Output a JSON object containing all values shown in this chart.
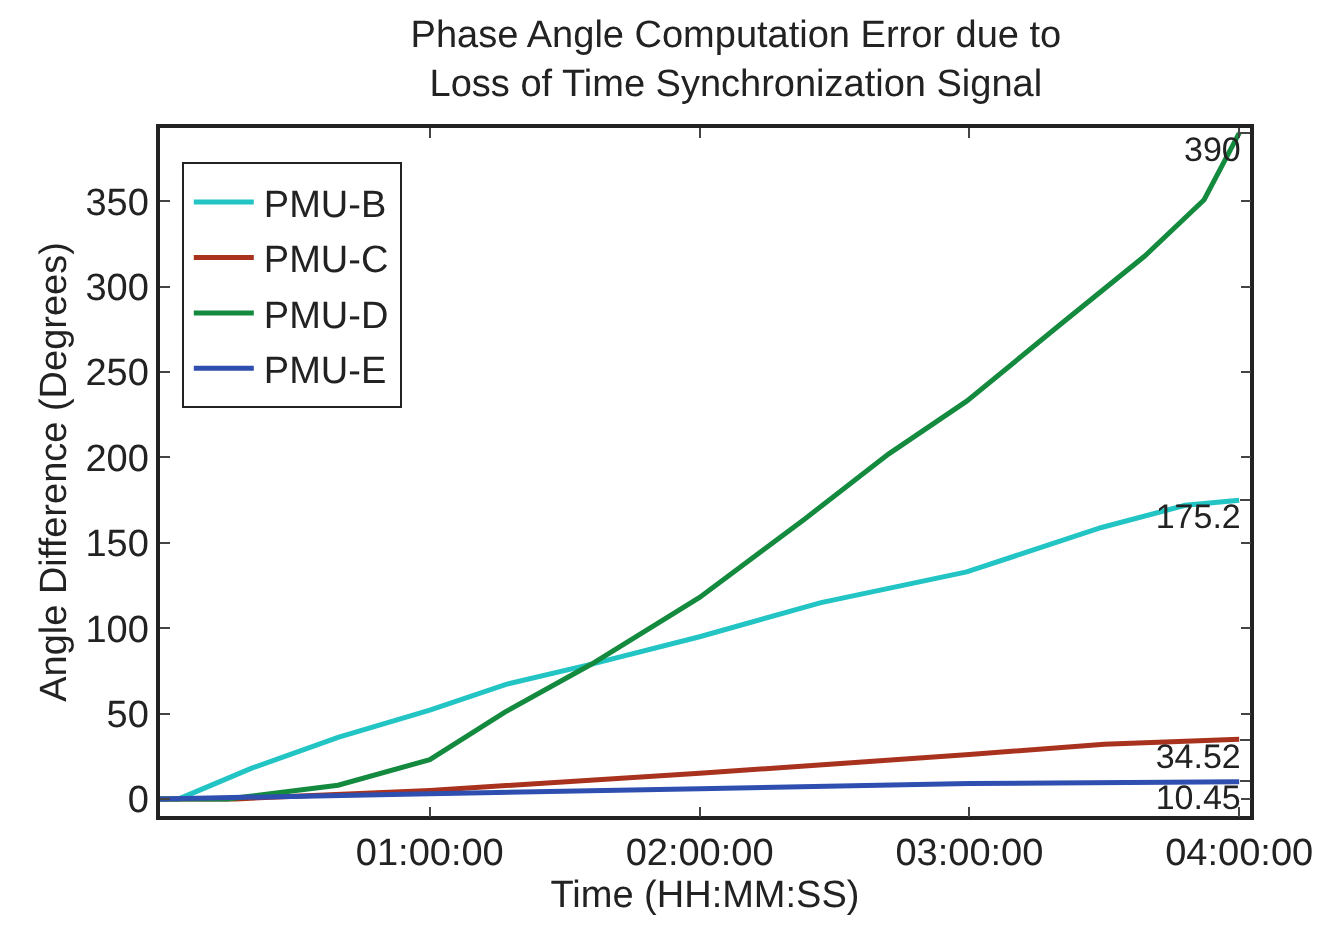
{
  "chart_data": {
    "type": "line",
    "title": "Phase Angle Computation Error due to\nLoss of Time Synchronization Signal",
    "xlabel": "Time (HH:MM:SS)",
    "ylabel": "Angle Difference (Degrees)",
    "xlim": [
      0,
      4.04
    ],
    "xticks": [
      {
        "value": 1,
        "label": "01:00:00"
      },
      {
        "value": 2,
        "label": "02:00:00"
      },
      {
        "value": 3,
        "label": "03:00:00"
      },
      {
        "value": 4,
        "label": "04:00:00"
      }
    ],
    "ylim": [
      -10,
      393
    ],
    "yticks": [
      0,
      50,
      100,
      150,
      200,
      250,
      300,
      350
    ],
    "legend": "top left",
    "marker": "none",
    "line_style": "solid",
    "series": [
      {
        "name": "PMU-B",
        "color": "#22c4c4",
        "x": [
          0,
          0.07,
          0.34,
          0.66,
          1.0,
          1.28,
          1.6,
          2.0,
          2.45,
          2.99,
          3.49,
          3.8,
          4.0
        ],
        "values": [
          0,
          0,
          18,
          36,
          52,
          67,
          79,
          95,
          115,
          133,
          159,
          172,
          175
        ]
      },
      {
        "name": "PMU-C",
        "color": "#a8321e",
        "x": [
          0,
          0.28,
          1.0,
          2.0,
          3.0,
          3.5,
          4.0
        ],
        "values": [
          0,
          0,
          5,
          15,
          26,
          32,
          35
        ]
      },
      {
        "name": "PMU-D",
        "color": "#138a3e",
        "x": [
          0,
          0.25,
          0.66,
          1.0,
          1.28,
          1.6,
          2.0,
          2.39,
          2.7,
          2.99,
          3.33,
          3.65,
          3.87,
          4.0
        ],
        "values": [
          0,
          0,
          8,
          23,
          51,
          79,
          118,
          164,
          202,
          233,
          277,
          318,
          351,
          390
        ]
      },
      {
        "name": "PMU-E",
        "color": "#2f4fb0",
        "x": [
          0,
          1.0,
          2.0,
          3.0,
          4.0
        ],
        "values": [
          0,
          3,
          6,
          9,
          10
        ]
      }
    ],
    "y2lim": [
      -10,
      393
    ],
    "y2ticks": [
      390,
      175.2,
      34.52,
      10.45
    ]
  }
}
